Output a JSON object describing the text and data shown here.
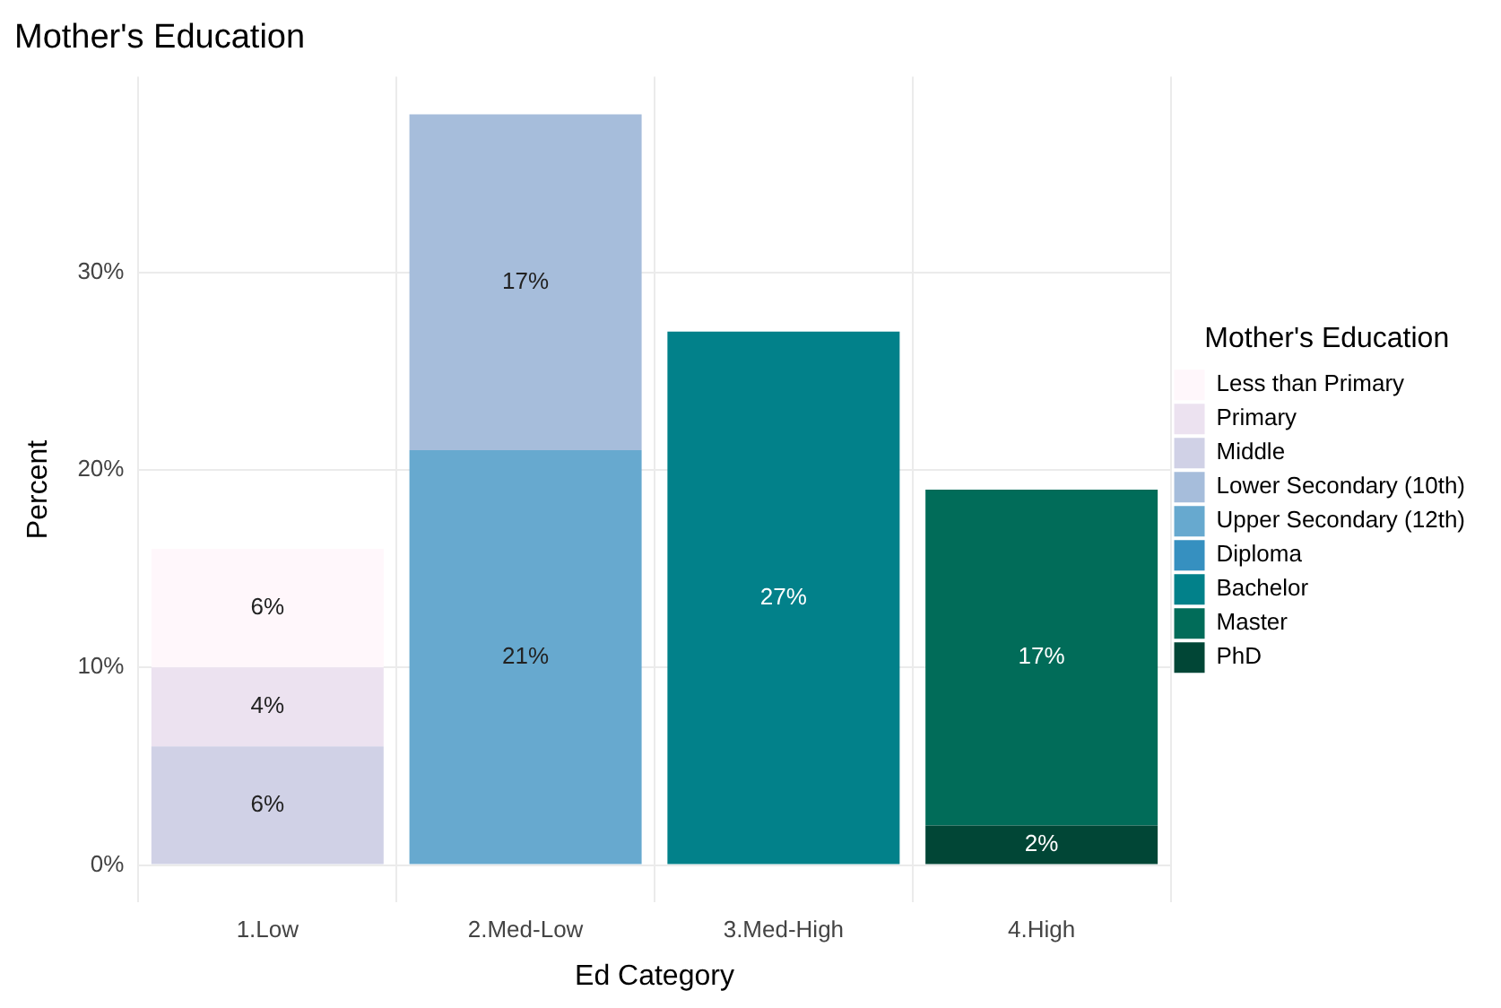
{
  "chart_data": {
    "type": "bar",
    "title": "Mother's Education",
    "xlabel": "Ed Category",
    "ylabel": "Percent",
    "legend_title": "Mother's Education",
    "categories": [
      "1.Low",
      "2.Med-Low",
      "3.Med-High",
      "4.High"
    ],
    "stacked": true,
    "ylim": [
      -1.9,
      39.9
    ],
    "yticks": [
      {
        "value": 0,
        "label": "0%"
      },
      {
        "value": 10,
        "label": "10%"
      },
      {
        "value": 20,
        "label": "20%"
      },
      {
        "value": 30,
        "label": "30%"
      }
    ],
    "grid": true,
    "legend": "right",
    "series": [
      {
        "name": "PhD",
        "color": "#014636",
        "values": [
          null,
          null,
          null,
          2
        ],
        "value_labels": [
          null,
          null,
          null,
          "2%"
        ]
      },
      {
        "name": "Master",
        "color": "#016c59",
        "values": [
          null,
          null,
          null,
          17
        ],
        "value_labels": [
          null,
          null,
          null,
          "17%"
        ]
      },
      {
        "name": "Bachelor",
        "color": "#02818a",
        "values": [
          null,
          null,
          27,
          null
        ],
        "value_labels": [
          null,
          null,
          "27%",
          null
        ]
      },
      {
        "name": "Diploma",
        "color": "#3690c0",
        "values": [
          null,
          null,
          null,
          null
        ]
      },
      {
        "name": "Upper Secondary (12th)",
        "color": "#67a9cf",
        "values": [
          null,
          21,
          null,
          null
        ],
        "value_labels": [
          null,
          "21%",
          null,
          null
        ]
      },
      {
        "name": "Lower Secondary (10th)",
        "color": "#a6bddb",
        "values": [
          null,
          17,
          null,
          null
        ],
        "value_labels": [
          null,
          "17%",
          null,
          null
        ]
      },
      {
        "name": "Middle",
        "color": "#d0d1e6",
        "values": [
          6,
          null,
          null,
          null
        ],
        "value_labels": [
          "6%",
          null,
          null,
          null
        ]
      },
      {
        "name": "Primary",
        "color": "#ece2f0",
        "values": [
          4,
          null,
          null,
          null
        ],
        "value_labels": [
          "4%",
          null,
          null,
          null
        ]
      },
      {
        "name": "Less than Primary",
        "color": "#fff7fb",
        "values": [
          6,
          null,
          null,
          null
        ],
        "value_labels": [
          "6%",
          null,
          null,
          null
        ]
      }
    ]
  }
}
